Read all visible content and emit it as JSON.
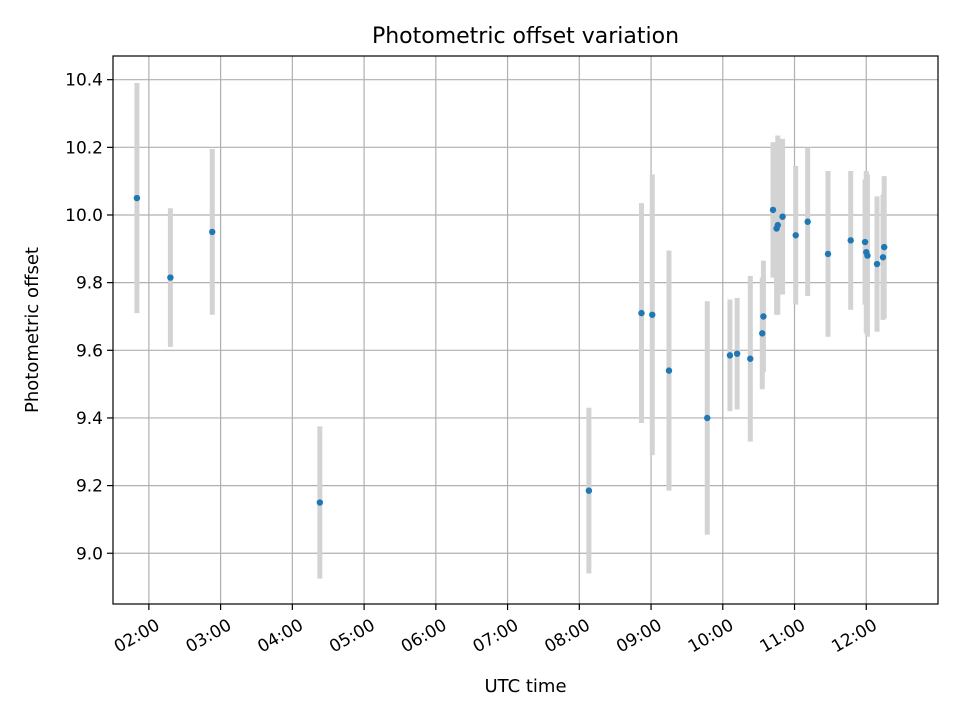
{
  "chart_data": {
    "type": "scatter",
    "title": "Photometric offset variation",
    "xlabel": "UTC time",
    "ylabel": "Photometric offset",
    "x_is_time": true,
    "x_unit": "UTC hour of day",
    "xlim": [
      "01:30",
      "13:00"
    ],
    "ylim": [
      8.85,
      10.47
    ],
    "x_ticks": [
      "02:00",
      "03:00",
      "04:00",
      "05:00",
      "06:00",
      "07:00",
      "08:00",
      "09:00",
      "10:00",
      "11:00",
      "12:00"
    ],
    "y_ticks": [
      "9.0",
      "9.2",
      "9.4",
      "9.6",
      "9.8",
      "10.0",
      "10.2",
      "10.4"
    ],
    "grid": true,
    "legend": "none",
    "colors": {
      "point": "#1f77b4",
      "errorbar": "#d3d3d3"
    },
    "series": [
      {
        "points": [
          {
            "x": "01:50",
            "y": 10.05,
            "yerr": 0.34
          },
          {
            "x": "02:18",
            "y": 9.815,
            "yerr": 0.205
          },
          {
            "x": "02:53",
            "y": 9.95,
            "yerr": 0.245
          },
          {
            "x": "04:23",
            "y": 9.15,
            "yerr": 0.225
          },
          {
            "x": "08:08",
            "y": 9.185,
            "yerr": 0.245
          },
          {
            "x": "08:52",
            "y": 9.71,
            "yerr": 0.325
          },
          {
            "x": "09:01",
            "y": 9.705,
            "yerr": 0.415
          },
          {
            "x": "09:15",
            "y": 9.54,
            "yerr": 0.355
          },
          {
            "x": "09:47",
            "y": 9.4,
            "yerr": 0.345
          },
          {
            "x": "10:06",
            "y": 9.585,
            "yerr": 0.165
          },
          {
            "x": "10:12",
            "y": 9.59,
            "yerr": 0.165
          },
          {
            "x": "10:23",
            "y": 9.575,
            "yerr": 0.245
          },
          {
            "x": "10:33",
            "y": 9.65,
            "yerr": 0.165
          },
          {
            "x": "10:34",
            "y": 9.7,
            "yerr": 0.165
          },
          {
            "x": "10:42",
            "y": 10.015,
            "yerr": 0.2
          },
          {
            "x": "10:45",
            "y": 9.96,
            "yerr": 0.255
          },
          {
            "x": "10:46",
            "y": 9.97,
            "yerr": 0.265
          },
          {
            "x": "10:50",
            "y": 9.995,
            "yerr": 0.23
          },
          {
            "x": "11:01",
            "y": 9.94,
            "yerr": 0.205
          },
          {
            "x": "11:11",
            "y": 9.98,
            "yerr": 0.22
          },
          {
            "x": "11:28",
            "y": 9.885,
            "yerr": 0.245
          },
          {
            "x": "11:47",
            "y": 9.925,
            "yerr": 0.205
          },
          {
            "x": "11:59",
            "y": 9.92,
            "yerr": 0.185
          },
          {
            "x": "12:00",
            "y": 9.89,
            "yerr": 0.24
          },
          {
            "x": "12:01",
            "y": 9.88,
            "yerr": 0.24
          },
          {
            "x": "12:09",
            "y": 9.855,
            "yerr": 0.2
          },
          {
            "x": "12:14",
            "y": 9.875,
            "yerr": 0.185
          },
          {
            "x": "12:15",
            "y": 9.905,
            "yerr": 0.21
          }
        ]
      }
    ]
  }
}
